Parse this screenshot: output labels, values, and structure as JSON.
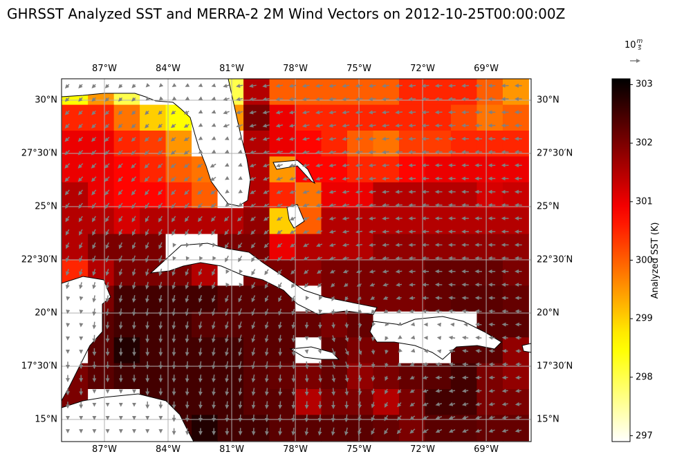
{
  "title": "GHRSST Analyzed SST and MERRA-2 2M Wind Vectors on 2012-10-25T00:00:00Z",
  "quiver_key": {
    "value": 10,
    "label_num": "10",
    "label_unit_num": "m",
    "label_unit_den": "s"
  },
  "chart_data": {
    "type": "heatmap",
    "title": "GHRSST Analyzed SST and MERRA-2 2M Wind Vectors on 2012-10-25T00:00:00Z",
    "lon_range": [
      -89,
      -67
    ],
    "lat_range": [
      14,
      31
    ],
    "x_ticks": [
      "87°W",
      "84°W",
      "81°W",
      "78°W",
      "75°W",
      "72°W",
      "69°W"
    ],
    "y_ticks_left": [
      "30°N",
      "27°30′N",
      "25°N",
      "22°30′N",
      "20°N",
      "17°30′N",
      "15°N"
    ],
    "y_ticks_right": [
      "30°N",
      "27°30′N",
      "25°N",
      "22°30′N",
      "20°N",
      "17°30′N",
      "15°N"
    ],
    "colorbar": {
      "label": "Analyzed SST (K)",
      "range": [
        296.9,
        303.1
      ],
      "colormap": "hot_r",
      "ticks": [
        "297",
        "298",
        "299",
        "300",
        "301",
        "302",
        "303"
      ]
    },
    "sst_grid_K": [
      [
        298.5,
        299.5,
        298,
        null,
        null,
        null,
        298,
        301.5,
        300,
        300,
        300,
        300,
        300,
        300.5,
        300.5,
        300.5,
        300,
        299.5
      ],
      [
        300.5,
        300.5,
        299.8,
        299,
        298.5,
        null,
        299.5,
        302,
        301,
        300.5,
        300.5,
        300.5,
        300.5,
        300.5,
        300.5,
        300.2,
        299.8,
        300
      ],
      [
        301,
        301,
        300.5,
        300.3,
        299.5,
        null,
        null,
        301.5,
        301,
        300.8,
        300.5,
        300,
        299.8,
        300.3,
        300.3,
        300.5,
        300.5,
        300.5
      ],
      [
        301,
        301,
        300.8,
        300.5,
        300,
        299.8,
        null,
        301.5,
        299.5,
        300.8,
        300.8,
        300.5,
        300.5,
        300.8,
        301,
        301,
        301,
        301
      ],
      [
        301.5,
        301,
        300.8,
        300.8,
        300.5,
        300,
        null,
        301.5,
        300.5,
        299.8,
        301,
        301,
        301.5,
        301.5,
        301.5,
        301.5,
        301.2,
        301.3
      ],
      [
        301.5,
        301.5,
        301.2,
        301.5,
        301.5,
        301.5,
        301.5,
        301.8,
        299,
        300,
        301.5,
        301.5,
        301.5,
        301.5,
        301.5,
        301.5,
        301.5,
        301.5
      ],
      [
        301.5,
        302,
        302,
        302,
        null,
        null,
        302,
        302,
        301,
        301.5,
        301.5,
        301.5,
        301.8,
        301.8,
        301.8,
        301.8,
        301.8,
        301.8
      ],
      [
        300.5,
        301.5,
        302,
        302,
        302,
        301.5,
        null,
        302,
        302,
        301.8,
        302,
        302,
        302,
        302,
        302.2,
        302.2,
        302.2,
        302
      ],
      [
        null,
        302,
        302.5,
        302.5,
        302.5,
        302.5,
        302.3,
        302.3,
        302.2,
        null,
        302,
        302,
        302,
        302,
        302.2,
        302.3,
        302.3,
        302.2
      ],
      [
        null,
        302.3,
        302.5,
        302.5,
        302.5,
        302.3,
        302.3,
        302.3,
        302.3,
        302.2,
        302,
        302.2,
        null,
        null,
        null,
        null,
        302.3,
        302.3
      ],
      [
        null,
        302.3,
        302.8,
        302.5,
        302.5,
        302.5,
        302.5,
        302.3,
        302.3,
        null,
        302.2,
        302,
        302,
        null,
        null,
        302.3,
        302.3,
        301.8
      ],
      [
        302,
        302.3,
        302.5,
        302.5,
        302.5,
        302.5,
        302.5,
        302.3,
        302.2,
        302,
        302.2,
        301.8,
        302,
        302.2,
        302.3,
        302.5,
        302,
        301.8
      ],
      [
        302,
        null,
        null,
        302.5,
        302.5,
        302.5,
        302.5,
        302.3,
        302.3,
        301.5,
        302,
        302,
        301.5,
        302,
        302.5,
        302.5,
        302,
        302
      ],
      [
        null,
        null,
        null,
        null,
        302.5,
        302.8,
        302.5,
        302.5,
        302.3,
        302.3,
        302.3,
        302.3,
        302.2,
        302,
        302.3,
        302.3,
        302.2,
        302.2
      ]
    ],
    "wind_u_ms": [
      [
        -3,
        -2,
        -6,
        -6,
        -6,
        -6
      ],
      [
        -4,
        -4,
        -5,
        -6,
        -6,
        -6
      ],
      [
        -2,
        -2,
        -3,
        -5,
        -6,
        -6
      ],
      [
        0,
        0,
        -2,
        3,
        -5,
        -4
      ],
      [
        0,
        0,
        0,
        -2,
        -5,
        -5
      ]
    ],
    "wind_v_ms": [
      [
        -3,
        -2,
        -1,
        -1,
        -0.5,
        0
      ],
      [
        -4,
        -4,
        -2,
        -1,
        0,
        0
      ],
      [
        -5,
        -6,
        -5,
        -1,
        0,
        0
      ],
      [
        -6,
        -7,
        -7,
        -6,
        1,
        0
      ],
      [
        -5,
        -5,
        -6,
        -7,
        -3,
        -1
      ]
    ]
  }
}
